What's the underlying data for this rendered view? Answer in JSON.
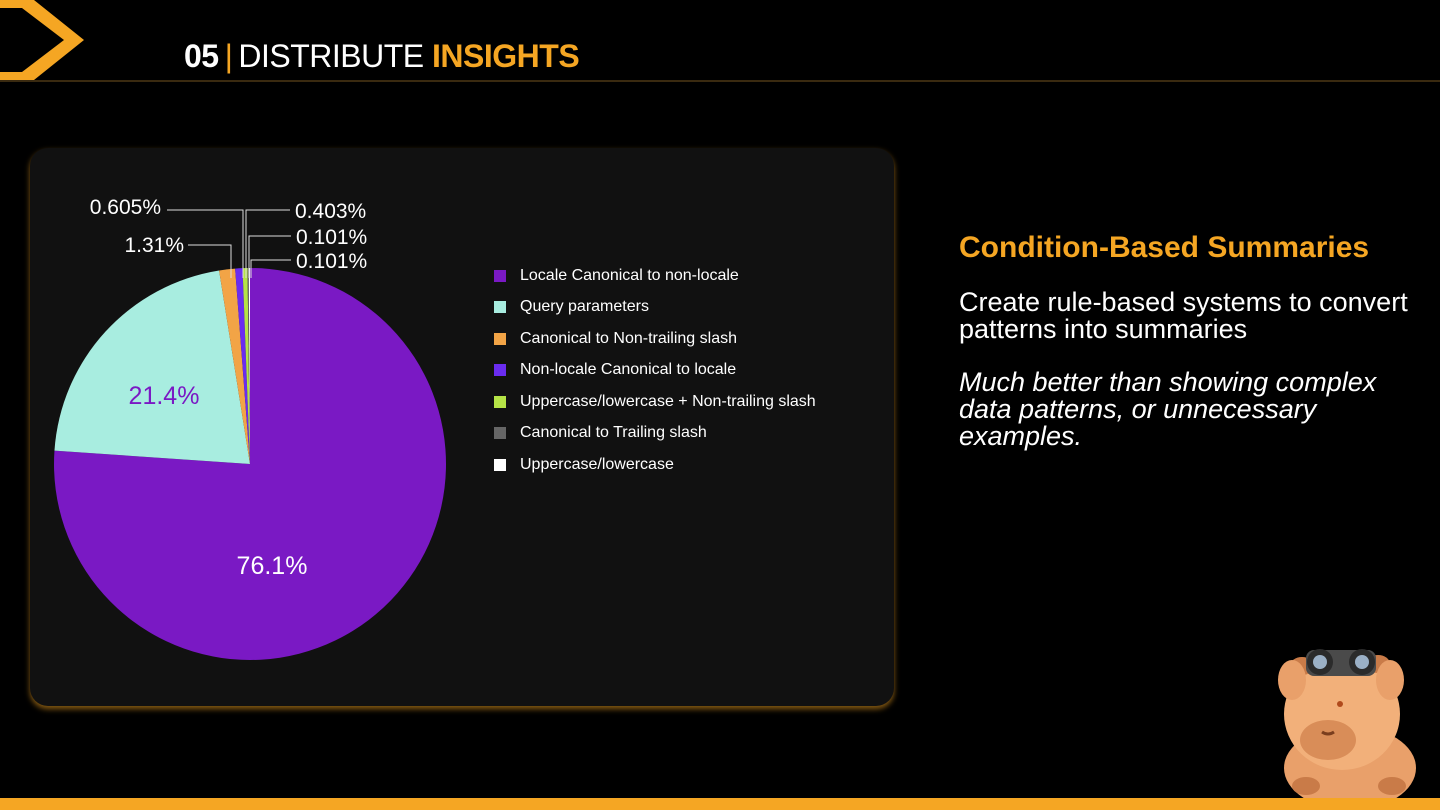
{
  "header": {
    "section_number": "05",
    "separator": "|",
    "title_plain": "DISTRIBUTE",
    "title_accent": "INSIGHTS"
  },
  "colors": {
    "accent": "#f5a623",
    "background": "#000000",
    "card": "#111111"
  },
  "chart_data": {
    "type": "pie",
    "title": "",
    "series": [
      {
        "name": "Locale Canonical to non-locale",
        "value": 76.1,
        "label": "76.1%",
        "color": "#7a19c4"
      },
      {
        "name": "Query parameters",
        "value": 21.4,
        "label": "21.4%",
        "color": "#a8ede0"
      },
      {
        "name": "Canonical to Non-trailing slash",
        "value": 1.31,
        "label": "1.31%",
        "color": "#f2a446"
      },
      {
        "name": "Non-locale Canonical to locale",
        "value": 0.605,
        "label": "0.605%",
        "color": "#6a2cf0"
      },
      {
        "name": "Uppercase/lowercase + Non-trailing slash",
        "value": 0.403,
        "label": "0.403%",
        "color": "#b5e346"
      },
      {
        "name": "Canonical to Trailing slash",
        "value": 0.101,
        "label": "0.101%",
        "color": "#666666"
      },
      {
        "name": "Uppercase/lowercase",
        "value": 0.101,
        "label": "0.101%",
        "color": "#ffffff"
      }
    ],
    "legend_position": "right"
  },
  "panel": {
    "heading": "Condition-Based Summaries",
    "paragraph1": "Create rule-based systems to convert patterns into summaries",
    "paragraph2": "Much better than showing complex data patterns, or unnecessary examples."
  }
}
